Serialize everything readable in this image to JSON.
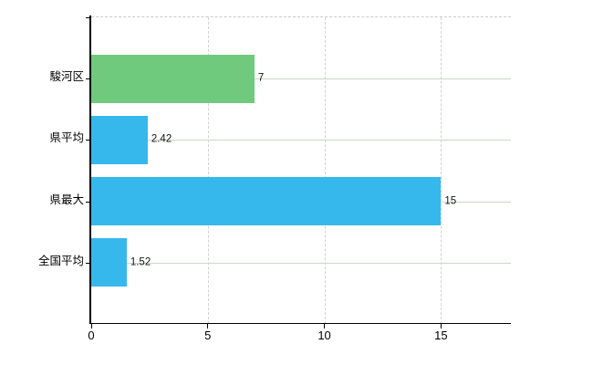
{
  "chart_data": {
    "type": "bar",
    "orientation": "horizontal",
    "categories": [
      "駿河区",
      "県平均",
      "県最大",
      "全国平均"
    ],
    "values": [
      7,
      2.42,
      15,
      1.52
    ],
    "value_labels": [
      "7",
      "2.42",
      "15",
      "1.52"
    ],
    "series": [
      {
        "name": "値",
        "values": [
          7,
          2.42,
          15,
          1.52
        ]
      }
    ],
    "bar_colors": [
      "#6fca7e",
      "#37b8ec",
      "#37b8ec",
      "#37b8ec"
    ],
    "x_ticks": [
      "0",
      "5",
      "10",
      "15"
    ],
    "x_tick_values": [
      0,
      5,
      10,
      15
    ],
    "xlim": [
      0,
      18
    ],
    "grid": {
      "vertical": "dashed",
      "horizontal": "solid",
      "top_border": "dashed"
    },
    "legend": "none",
    "colors": {
      "background": "#ffffff",
      "axis": "#000000",
      "vertical_grid": "#d1d1d1",
      "horizontal_grid": "#ccd5cb",
      "green_bar": "#6fca7e",
      "blue_bar": "#37b8ec",
      "label_text": "#000000"
    }
  }
}
